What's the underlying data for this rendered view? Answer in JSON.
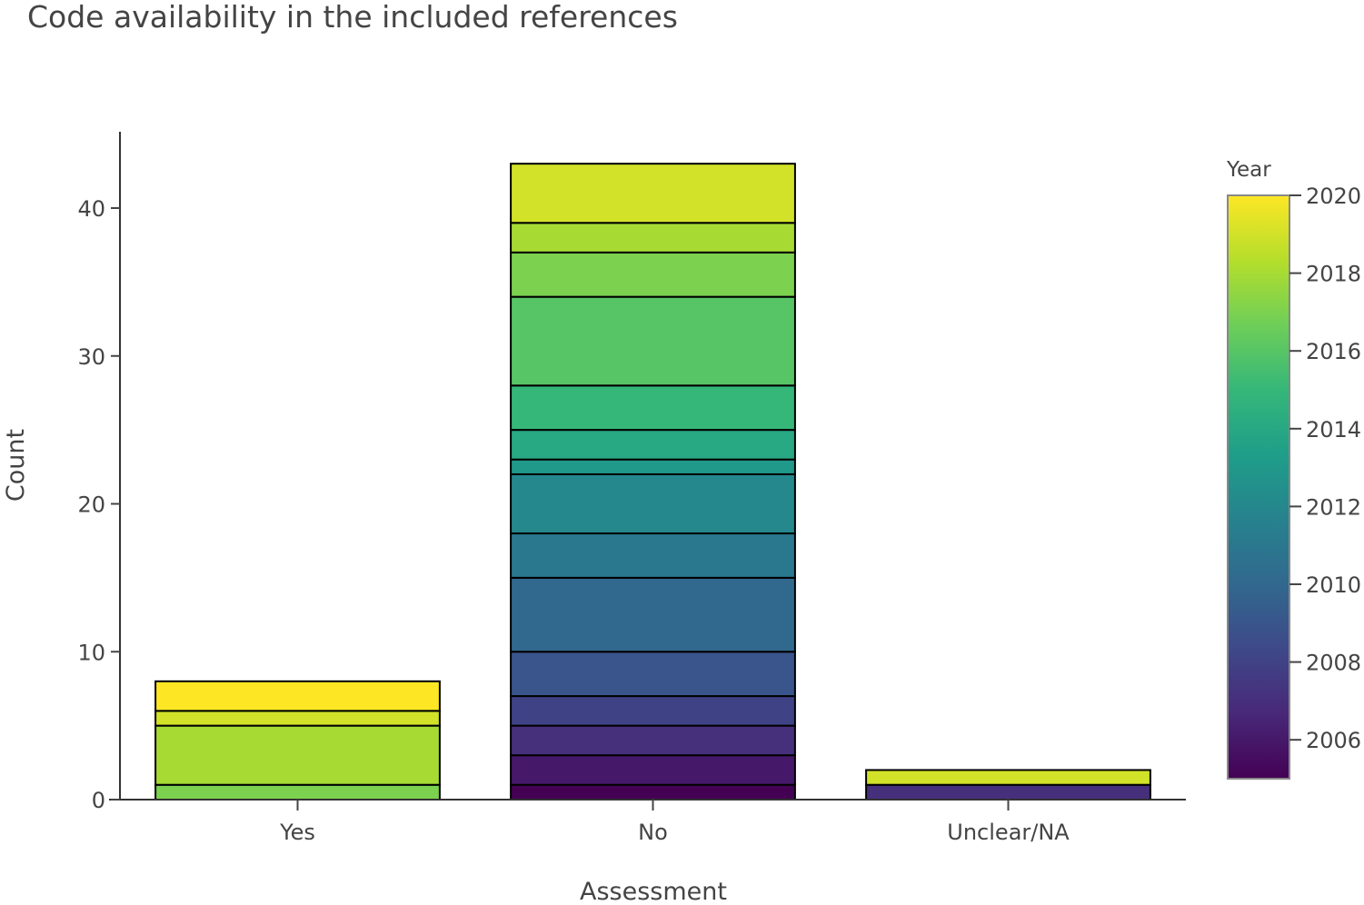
{
  "chart_data": {
    "type": "bar",
    "stacked": true,
    "title": "Code availability in the included references",
    "xlabel": "Assessment",
    "ylabel": "Count",
    "categories": [
      "Yes",
      "No",
      "Unclear/NA"
    ],
    "ylim": [
      0,
      45
    ],
    "yticks": [
      0,
      10,
      20,
      30,
      40
    ],
    "grid": false,
    "stacks": [
      {
        "category": "Yes",
        "segments": [
          {
            "year": 2017,
            "value": 1
          },
          {
            "year": 2018,
            "value": 4
          },
          {
            "year": 2019,
            "value": 1
          },
          {
            "year": 2020,
            "value": 2
          }
        ]
      },
      {
        "category": "No",
        "segments": [
          {
            "year": 2005,
            "value": 1
          },
          {
            "year": 2006,
            "value": 2
          },
          {
            "year": 2007,
            "value": 2
          },
          {
            "year": 2008,
            "value": 2
          },
          {
            "year": 2009,
            "value": 3
          },
          {
            "year": 2010,
            "value": 5
          },
          {
            "year": 2011,
            "value": 3
          },
          {
            "year": 2012,
            "value": 4
          },
          {
            "year": 2013,
            "value": 1
          },
          {
            "year": 2014,
            "value": 2
          },
          {
            "year": 2015,
            "value": 3
          },
          {
            "year": 2016,
            "value": 6
          },
          {
            "year": 2017,
            "value": 3
          },
          {
            "year": 2018,
            "value": 2
          },
          {
            "year": 2019,
            "value": 4
          }
        ]
      },
      {
        "category": "Unclear/NA",
        "segments": [
          {
            "year": 2007,
            "value": 1
          },
          {
            "year": 2019,
            "value": 1
          }
        ]
      }
    ],
    "colorbar": {
      "title": "Year",
      "range": [
        2005,
        2020
      ],
      "ticks": [
        "2006",
        "2008",
        "2010",
        "2012",
        "2014",
        "2016",
        "2018",
        "2020"
      ],
      "colorscale": [
        "#440154",
        "#482878",
        "#3e4989",
        "#31688e",
        "#26828e",
        "#1f9e89",
        "#35b779",
        "#6ece58",
        "#b5de2b",
        "#fde725"
      ],
      "placement": "right"
    }
  }
}
